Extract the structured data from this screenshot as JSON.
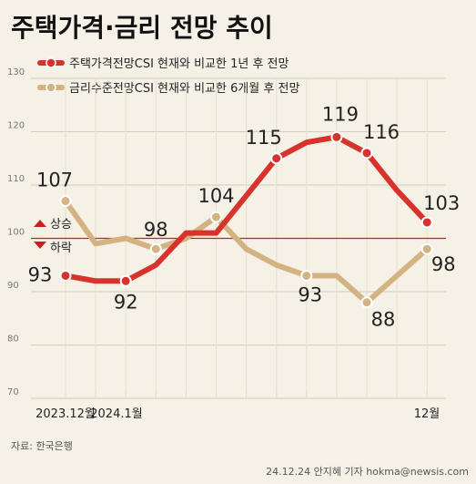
{
  "chart_data": {
    "type": "line",
    "title": "주택가격·금리 전망 추이",
    "y_ticks": [
      70,
      80,
      90,
      100,
      110,
      120,
      130
    ],
    "ylim": [
      70,
      130
    ],
    "x_labels": [
      "2023.12월",
      "2024.1월",
      "12월"
    ],
    "reference_line": 100,
    "up_label": "상승",
    "down_label": "하락",
    "series": [
      {
        "name": "주택가격전망CSI 현재와 비교한 1년 후 전망",
        "color": "#d8322c",
        "values": [
          93,
          92,
          92,
          95,
          101,
          101,
          108,
          115,
          118,
          119,
          116,
          109,
          103
        ],
        "point_labels": [
          {
            "i": 0,
            "text": "93"
          },
          {
            "i": 2,
            "text": "92"
          },
          {
            "i": 7,
            "text": "115"
          },
          {
            "i": 9,
            "text": "119"
          },
          {
            "i": 10,
            "text": "116"
          },
          {
            "i": 12,
            "text": "103"
          }
        ]
      },
      {
        "name": "금리수준전망CSI 현재와 비교한 6개월 후 전망",
        "color": "#d4b383",
        "values": [
          107,
          99,
          100,
          98,
          100,
          104,
          98,
          95,
          93,
          93,
          88,
          93,
          98
        ],
        "point_labels": [
          {
            "i": 0,
            "text": "107"
          },
          {
            "i": 3,
            "text": "98"
          },
          {
            "i": 5,
            "text": "104"
          },
          {
            "i": 8,
            "text": "93"
          },
          {
            "i": 10,
            "text": "88"
          },
          {
            "i": 12,
            "text": "98"
          }
        ]
      }
    ],
    "source": "자료: 한국은행",
    "credit": "24.12.24 안지혜 기자 hokma@newsis.com"
  }
}
